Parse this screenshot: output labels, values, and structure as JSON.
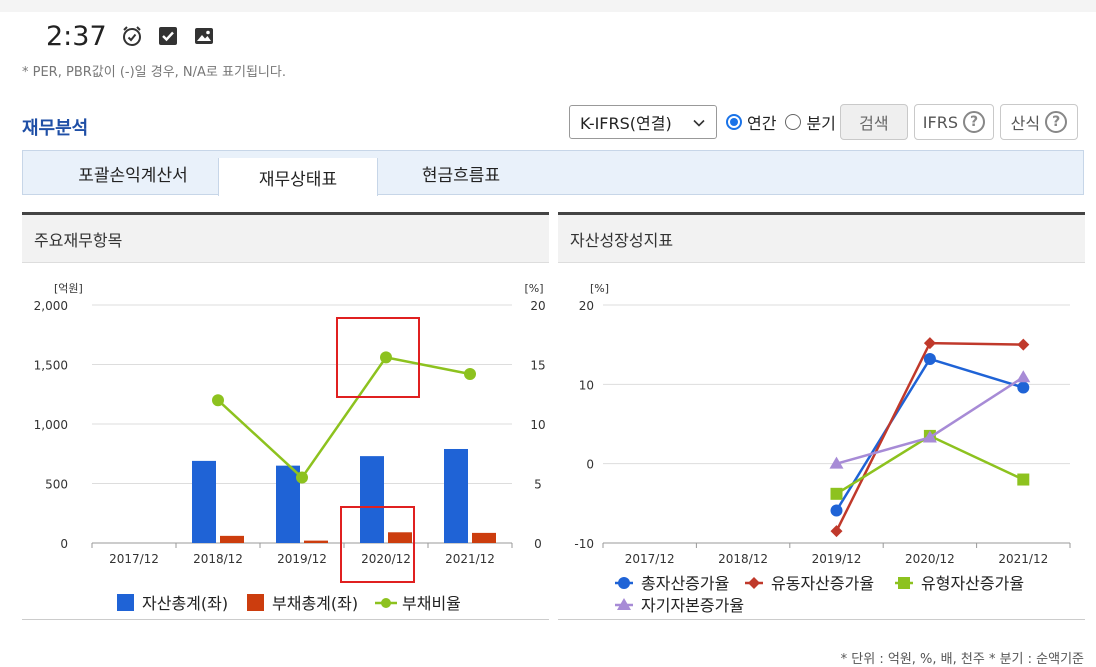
{
  "status": {
    "time": "2:37",
    "icons": [
      "alarm-icon",
      "checkbox-icon",
      "image-icon"
    ]
  },
  "note": "* PER, PBR값이 (-)일 경우, N/A로 표기됩니다.",
  "section_title": "재무분석",
  "controls": {
    "select_value": "K-IFRS(연결)",
    "radio_annual": "연간",
    "radio_quarter": "분기",
    "search_label": "검색",
    "ifrs_label": "IFRS",
    "formula_label": "산식"
  },
  "tabs": [
    {
      "label": "포괄손익계산서",
      "active": false
    },
    {
      "label": "재무상태표",
      "active": true
    },
    {
      "label": "현금흐름표",
      "active": false
    }
  ],
  "colors": {
    "asset": "#1f63d6",
    "liability": "#cc3d0e",
    "ratio": "#8dc21f",
    "total_growth": "#1f63d6",
    "current_growth": "#c0392b",
    "tangible_growth": "#8dc21f",
    "equity_growth": "#a78bd6",
    "annotation": "#e02020"
  },
  "chart_data": [
    {
      "type": "bar",
      "title": "주요재무항목",
      "categories": [
        "2017/12",
        "2018/12",
        "2019/12",
        "2020/12",
        "2021/12"
      ],
      "left_unit": "[억원]",
      "right_unit": "[%]",
      "y_ticks": [
        "2,000",
        "1,500",
        "1,000",
        "500",
        "0"
      ],
      "y2_ticks": [
        "20",
        "15",
        "10",
        "5",
        "0"
      ],
      "ylim": [
        0,
        2000
      ],
      "y2lim": [
        0,
        20
      ],
      "series": [
        {
          "name": "자산총계(좌)",
          "kind": "bar",
          "axis": "left",
          "values": [
            null,
            690,
            650,
            730,
            790
          ]
        },
        {
          "name": "부채총계(좌)",
          "kind": "bar",
          "axis": "left",
          "values": [
            null,
            60,
            20,
            90,
            85
          ]
        },
        {
          "name": "부채비율",
          "kind": "line",
          "axis": "right",
          "values": [
            null,
            12.0,
            5.5,
            15.6,
            14.2
          ]
        }
      ]
    },
    {
      "type": "line",
      "title": "자산성장성지표",
      "categories": [
        "2017/12",
        "2018/12",
        "2019/12",
        "2020/12",
        "2021/12"
      ],
      "unit": "[%]",
      "y_ticks": [
        "20",
        "10",
        "0",
        "-10"
      ],
      "ylim": [
        -10,
        20
      ],
      "series": [
        {
          "name": "총자산증가율",
          "marker": "circle",
          "values": [
            null,
            null,
            -5.9,
            13.2,
            9.6
          ]
        },
        {
          "name": "유동자산증가율",
          "marker": "diamond",
          "values": [
            null,
            null,
            -8.5,
            15.2,
            15.0
          ]
        },
        {
          "name": "유형자산증가율",
          "marker": "square",
          "values": [
            null,
            null,
            -3.8,
            3.5,
            -2.0
          ]
        },
        {
          "name": "자기자본증가율",
          "marker": "triangle",
          "values": [
            null,
            null,
            0.0,
            3.3,
            10.9
          ]
        }
      ]
    }
  ],
  "footer": "* 단위 : 억원, %, 배, 천주    * 분기 : 순액기준"
}
